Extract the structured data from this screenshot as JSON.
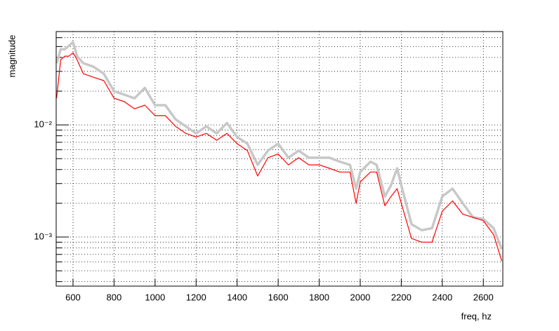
{
  "chart_data": {
    "type": "line",
    "x_label": "freq, hz",
    "y_label": "magnitude",
    "log_y": true,
    "grid": true,
    "xlim": [
      518,
      2695
    ],
    "ylim": [
      0.000365,
      0.068
    ],
    "xticks": [
      600,
      800,
      1000,
      1200,
      1400,
      1600,
      1800,
      2000,
      2200,
      2400,
      2600
    ],
    "yticks": [
      {
        "value": 0.001,
        "label": "10⁻³"
      },
      {
        "value": 0.01,
        "label": "10⁻²"
      }
    ],
    "y_minor_ticks": [
      0.0004,
      0.0005,
      0.0006,
      0.0007,
      0.0008,
      0.0009,
      0.002,
      0.003,
      0.004,
      0.005,
      0.006,
      0.007,
      0.008,
      0.009,
      0.02,
      0.03,
      0.04,
      0.05,
      0.06
    ],
    "x": [
      520,
      540,
      560,
      580,
      600,
      620,
      650,
      700,
      750,
      800,
      850,
      900,
      950,
      1000,
      1050,
      1100,
      1150,
      1200,
      1250,
      1300,
      1350,
      1400,
      1450,
      1500,
      1550,
      1600,
      1650,
      1700,
      1750,
      1800,
      1850,
      1900,
      1950,
      1980,
      2000,
      2050,
      2080,
      2120,
      2150,
      2180,
      2200,
      2250,
      2300,
      2350,
      2400,
      2450,
      2500,
      2550,
      2600,
      2650,
      2690
    ],
    "series": [
      {
        "color": "#c8c8c8",
        "values": [
          0.0355,
          0.0473,
          0.0473,
          0.0508,
          0.0546,
          0.041,
          0.0355,
          0.033,
          0.0286,
          0.02,
          0.0186,
          0.0173,
          0.0214,
          0.015,
          0.015,
          0.0112,
          0.0097,
          0.0084,
          0.0097,
          0.0084,
          0.0104,
          0.0078,
          0.0068,
          0.0044,
          0.0059,
          0.0068,
          0.0051,
          0.0059,
          0.0051,
          0.0051,
          0.0051,
          0.0047,
          0.0044,
          0.0027,
          0.0038,
          0.0047,
          0.0044,
          0.0023,
          0.0029,
          0.0041,
          0.0029,
          0.0013,
          0.00115,
          0.0012,
          0.0023,
          0.0027,
          0.002,
          0.0015,
          0.00145,
          0.0012,
          0.00078
        ]
      },
      {
        "color": "#ff0000",
        "values": [
          0.0173,
          0.0381,
          0.041,
          0.041,
          0.044,
          0.0381,
          0.0286,
          0.0266,
          0.0248,
          0.0173,
          0.0161,
          0.0139,
          0.015,
          0.0121,
          0.0121,
          0.0097,
          0.0084,
          0.0078,
          0.0084,
          0.0073,
          0.0084,
          0.0068,
          0.0059,
          0.0035,
          0.0051,
          0.0055,
          0.0044,
          0.0051,
          0.0044,
          0.0044,
          0.0041,
          0.0038,
          0.0038,
          0.002,
          0.0031,
          0.0038,
          0.0038,
          0.0019,
          0.0023,
          0.0027,
          0.002,
          0.00097,
          0.0009,
          0.0009,
          0.0017,
          0.0021,
          0.0016,
          0.0015,
          0.0014,
          0.00105,
          0.00061
        ]
      }
    ]
  }
}
